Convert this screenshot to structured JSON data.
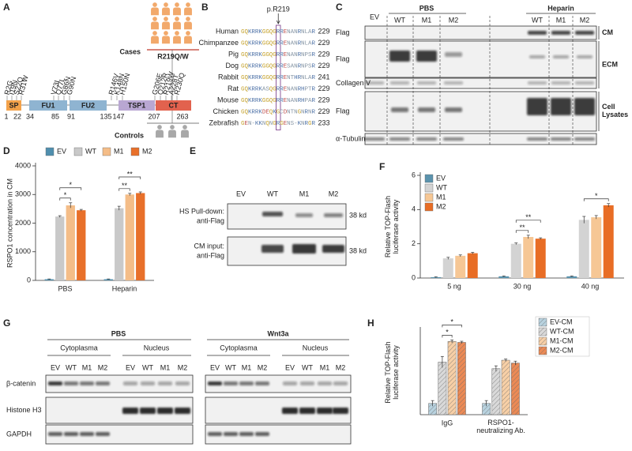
{
  "figure": {
    "panel_labels": [
      "A",
      "B",
      "C",
      "D",
      "E",
      "F",
      "G",
      "H"
    ],
    "a": {
      "cases": "Cases",
      "mutation": "R219Q/W",
      "controls": "Controls",
      "domains": [
        "SP",
        "FU1",
        "FU2",
        "TSP1",
        "CT"
      ],
      "positions": [
        1,
        22,
        34,
        85,
        91,
        135,
        147,
        207,
        263
      ],
      "variants": [
        "R2G",
        "I19N",
        "S22Q",
        "R31W",
        "V73I",
        "Q77L",
        "G86N",
        "G90N",
        "R146V",
        "K148N",
        "H150N",
        "G206E",
        "Q212R",
        "R219W",
        "A228T",
        "R230Q"
      ]
    },
    "b": {
      "marker": "p.R219",
      "rows": [
        {
          "species": "Human",
          "sequence": "GQKRRKGGQGRRENANRNLAR",
          "end": 229
        },
        {
          "species": "Chimpanzee",
          "sequence": "GQKRRKGGQGRRENANRNLAR",
          "end": 229
        },
        {
          "species": "Pig",
          "sequence": "GQKRRKGGQGRRENANRNPSR",
          "end": 229
        },
        {
          "species": "Dog",
          "sequence": "GQKRRKGGQGRRESANRNPSR",
          "end": 229
        },
        {
          "species": "Rabbit",
          "sequence": "GQKRRKGGQGRRENTHRNLAR",
          "end": 241
        },
        {
          "species": "Rat",
          "sequence": "GQKRRKASQGRRENANRHPTR",
          "end": 229
        },
        {
          "species": "Mouse",
          "sequence": "GQKRRKGGQGRRENANRHPAR",
          "end": 229
        },
        {
          "species": "Chicken",
          "sequence": "GQKRRKDEQKGCDNTNGNRNR",
          "end": 229
        },
        {
          "species": "Zebrafish",
          "sequence": "GEN-KKNQNGRGENS-KNRGR",
          "end": 233
        }
      ]
    },
    "c": {
      "groups": [
        "PBS",
        "Heparin"
      ],
      "lanes": [
        "EV",
        "WT",
        "M1",
        "M2",
        "WT",
        "M1",
        "M2"
      ],
      "blots": [
        "Flag",
        "Flag",
        "Collagen V",
        "Flag",
        "α-Tubulin"
      ],
      "fractions": [
        "CM",
        "ECM",
        "Cell\nLysates"
      ]
    },
    "e": {
      "lanes": [
        "EV",
        "WT",
        "M1",
        "M2"
      ],
      "rows": [
        [
          "HS Pull-down:",
          "anti-Flag"
        ],
        [
          "CM input:",
          "anti-Flag"
        ]
      ],
      "sizes": [
        "38 kd",
        "38 kd"
      ]
    },
    "g": {
      "groups": [
        "PBS",
        "Wnt3a"
      ],
      "fractions": [
        "Cytoplasma",
        "Nucleus",
        "Cytoplasma",
        "Nucleus"
      ],
      "lanes": [
        "EV",
        "WT",
        "M1",
        "M2",
        "EV",
        "WT",
        "M1",
        "M2",
        "EV",
        "WT",
        "M1",
        "M2",
        "EV",
        "WT",
        "M1",
        "M2"
      ],
      "blots": [
        "β-catenin",
        "Histone H3",
        "GAPDH"
      ]
    }
  },
  "chart_data": [
    {
      "type": "bar",
      "ylabel": "RSPO1 concentration in CM",
      "categories": [
        "PBS",
        "Heparin"
      ],
      "series": [
        {
          "name": "EV",
          "color": "#4f8fae",
          "values": [
            40,
            40
          ],
          "errors": [
            10,
            10
          ]
        },
        {
          "name": "WT",
          "color": "#c9c9c9",
          "values": [
            2230,
            2520
          ],
          "errors": [
            30,
            70
          ]
        },
        {
          "name": "M1",
          "color": "#f4bd88",
          "values": [
            2620,
            3000
          ],
          "errors": [
            90,
            40
          ]
        },
        {
          "name": "M2",
          "color": "#e8702a",
          "values": [
            2450,
            3050
          ],
          "errors": [
            30,
            40
          ]
        }
      ],
      "ylim": [
        0,
        4000
      ],
      "yticks": [
        0,
        1000,
        2000,
        3000,
        4000
      ],
      "legend": "top",
      "annotations": [
        "*",
        "*",
        "**",
        "**"
      ]
    },
    {
      "type": "bar",
      "ylabel": "Relative TOP-Flash\nluciferase activity",
      "categories": [
        "5 ng",
        "30 ng",
        "40 ng"
      ],
      "series": [
        {
          "name": "EV",
          "color": "#5b93ad",
          "values": [
            0.05,
            0.1,
            0.1
          ],
          "errors": [
            0.02,
            0.02,
            0.02
          ]
        },
        {
          "name": "WT",
          "color": "#d3d3d3",
          "values": [
            1.15,
            2.0,
            3.4
          ],
          "errors": [
            0.06,
            0.05,
            0.2
          ]
        },
        {
          "name": "M1",
          "color": "#f6c795",
          "values": [
            1.3,
            2.4,
            3.55
          ],
          "errors": [
            0.05,
            0.1,
            0.1
          ]
        },
        {
          "name": "M2",
          "color": "#e86d25",
          "values": [
            1.45,
            2.3,
            4.25
          ],
          "errors": [
            0.05,
            0.05,
            0.1
          ]
        }
      ],
      "ylim": [
        0,
        6
      ],
      "yticks": [
        0,
        2,
        4,
        6
      ],
      "legend": "top-left",
      "annotations": [
        "**",
        "**",
        "*"
      ]
    },
    {
      "type": "bar",
      "ylabel": "Relative TOP-Flash\nluciferase activity",
      "categories": [
        "IgG",
        "RSPO1-\nneutralizing Ab."
      ],
      "series": [
        {
          "name": "EV-CM",
          "color": "#b8d2df",
          "values": [
            0.06,
            0.06
          ],
          "errors": [
            0.015,
            0.015
          ]
        },
        {
          "name": "WT-CM",
          "color": "#d9d9d9",
          "values": [
            0.28,
            0.245
          ],
          "errors": [
            0.03,
            0.015
          ]
        },
        {
          "name": "M1-CM",
          "color": "#f7cfa6",
          "values": [
            0.39,
            0.29
          ],
          "errors": [
            0.008,
            0.006
          ]
        },
        {
          "name": "M2-CM",
          "color": "#ec8a55",
          "values": [
            0.385,
            0.275
          ],
          "errors": [
            0.006,
            0.01
          ]
        }
      ],
      "ylim": [
        0,
        0.45
      ],
      "hatch": true,
      "legend": "right",
      "annotations": [
        "*",
        "*"
      ]
    }
  ]
}
